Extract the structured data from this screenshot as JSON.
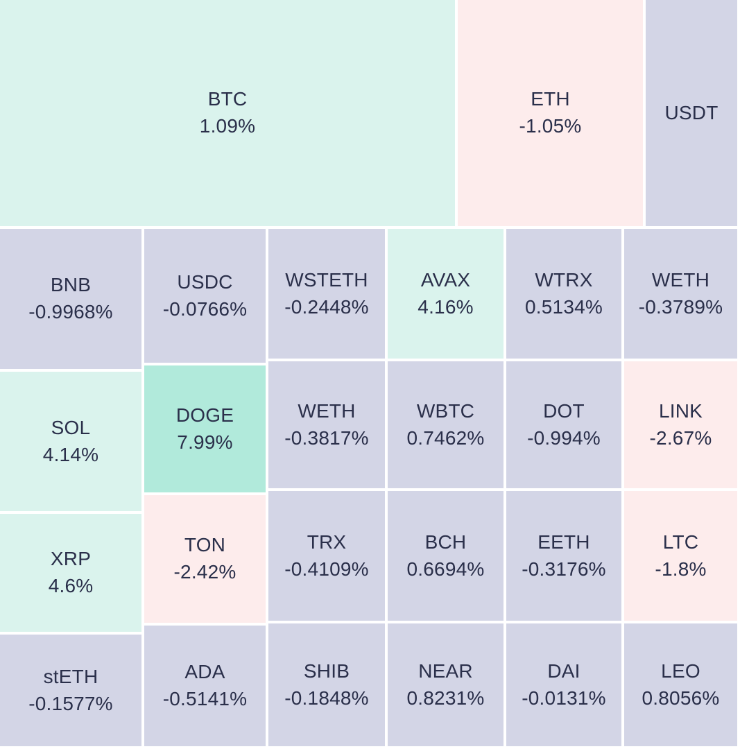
{
  "chart_data": {
    "type": "treemap",
    "colors": {
      "up": "#daf3ed",
      "strong_up": "#b1eadb",
      "down": "#fdecec",
      "neutral": "#d3d5e6",
      "text": "#2a2f4a"
    },
    "items": [
      {
        "symbol": "BTC",
        "change": "1.09%",
        "tone": "up"
      },
      {
        "symbol": "ETH",
        "change": "-1.05%",
        "tone": "down"
      },
      {
        "symbol": "USDT",
        "change": "",
        "tone": "neutral"
      },
      {
        "symbol": "BNB",
        "change": "-0.9968%",
        "tone": "neutral"
      },
      {
        "symbol": "USDC",
        "change": "-0.0766%",
        "tone": "neutral"
      },
      {
        "symbol": "WSTETH",
        "change": "-0.2448%",
        "tone": "neutral"
      },
      {
        "symbol": "AVAX",
        "change": "4.16%",
        "tone": "up"
      },
      {
        "symbol": "WTRX",
        "change": "0.5134%",
        "tone": "neutral"
      },
      {
        "symbol": "WETH",
        "change": "-0.3789%",
        "tone": "neutral"
      },
      {
        "symbol": "SOL",
        "change": "4.14%",
        "tone": "up"
      },
      {
        "symbol": "DOGE",
        "change": "7.99%",
        "tone": "strong_up"
      },
      {
        "symbol": "WETH",
        "change": "-0.3817%",
        "tone": "neutral"
      },
      {
        "symbol": "WBTC",
        "change": "0.7462%",
        "tone": "neutral"
      },
      {
        "symbol": "DOT",
        "change": "-0.994%",
        "tone": "neutral"
      },
      {
        "symbol": "LINK",
        "change": "-2.67%",
        "tone": "down"
      },
      {
        "symbol": "XRP",
        "change": "4.6%",
        "tone": "up"
      },
      {
        "symbol": "TON",
        "change": "-2.42%",
        "tone": "down"
      },
      {
        "symbol": "TRX",
        "change": "-0.4109%",
        "tone": "neutral"
      },
      {
        "symbol": "BCH",
        "change": "0.6694%",
        "tone": "neutral"
      },
      {
        "symbol": "EETH",
        "change": "-0.3176%",
        "tone": "neutral"
      },
      {
        "symbol": "LTC",
        "change": "-1.8%",
        "tone": "down"
      },
      {
        "symbol": "stETH",
        "change": "-0.1577%",
        "tone": "neutral"
      },
      {
        "symbol": "ADA",
        "change": "-0.5141%",
        "tone": "neutral"
      },
      {
        "symbol": "SHIB",
        "change": "-0.1848%",
        "tone": "neutral"
      },
      {
        "symbol": "NEAR",
        "change": "0.8231%",
        "tone": "neutral"
      },
      {
        "symbol": "DAI",
        "change": "-0.0131%",
        "tone": "neutral"
      },
      {
        "symbol": "LEO",
        "change": "0.8056%",
        "tone": "neutral"
      }
    ]
  }
}
